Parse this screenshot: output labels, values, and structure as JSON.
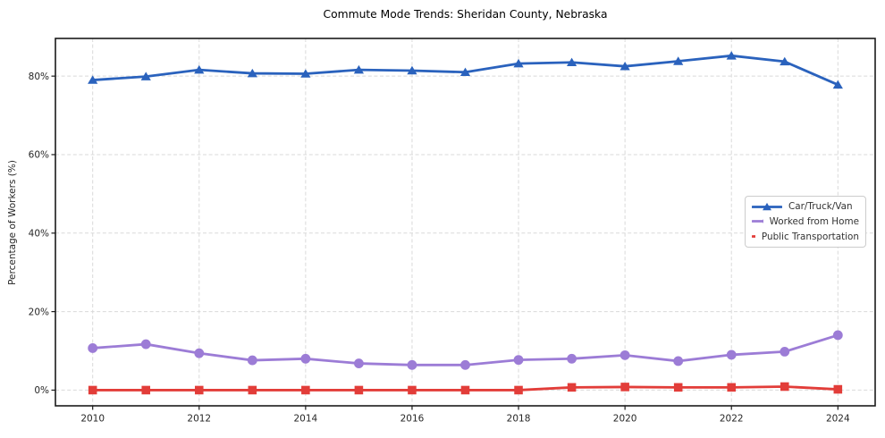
{
  "colors": {
    "background": "#ffffff",
    "grid": "#d9d9d9",
    "spine": "#1a1a1a",
    "tick_text": "#262626",
    "title_text": "#000000",
    "legend_border": "#cccccc",
    "legend_text": "#333333",
    "series_blue": "#2a62bd",
    "series_purple": "#9c7cd6",
    "series_red": "#e23d39"
  },
  "chart_data": {
    "type": "line",
    "title": "Commute Mode Trends: Sheridan County, Nebraska",
    "xlabel": "",
    "ylabel": "Percentage of Workers (%)",
    "x": [
      2010,
      2011,
      2012,
      2013,
      2014,
      2015,
      2016,
      2017,
      2018,
      2019,
      2020,
      2021,
      2022,
      2023,
      2024
    ],
    "xticks": [
      2010,
      2012,
      2014,
      2016,
      2018,
      2020,
      2022,
      2024
    ],
    "xtick_labels": [
      "2010",
      "2012",
      "2014",
      "2016",
      "2018",
      "2020",
      "2022",
      "2024"
    ],
    "yticks": [
      0,
      20,
      40,
      60,
      80
    ],
    "ytick_labels": [
      "0%",
      "20%",
      "40%",
      "60%",
      "80%"
    ],
    "xlim": [
      2009.3,
      2024.7
    ],
    "ylim": [
      -4,
      89.6
    ],
    "grid": true,
    "grid_style": "dashed",
    "legend_position": "center-right",
    "series": [
      {
        "name": "Car/Truck/Van",
        "color": "#2a62bd",
        "marker": "triangle",
        "values": [
          79.0,
          79.9,
          81.6,
          80.7,
          80.6,
          81.6,
          81.4,
          81.0,
          83.2,
          83.5,
          82.5,
          83.8,
          85.2,
          83.7,
          77.8
        ]
      },
      {
        "name": "Worked from Home",
        "color": "#9c7cd6",
        "marker": "circle",
        "values": [
          10.7,
          11.7,
          9.4,
          7.6,
          8.0,
          6.8,
          6.4,
          6.4,
          7.7,
          8.0,
          8.9,
          7.4,
          9.0,
          9.8,
          14.0
        ]
      },
      {
        "name": "Public Transportation",
        "color": "#e23d39",
        "marker": "square",
        "values": [
          0.0,
          0.0,
          0.0,
          0.0,
          0.0,
          0.0,
          0.0,
          0.0,
          0.0,
          0.7,
          0.8,
          0.7,
          0.7,
          0.9,
          0.2
        ]
      }
    ]
  }
}
